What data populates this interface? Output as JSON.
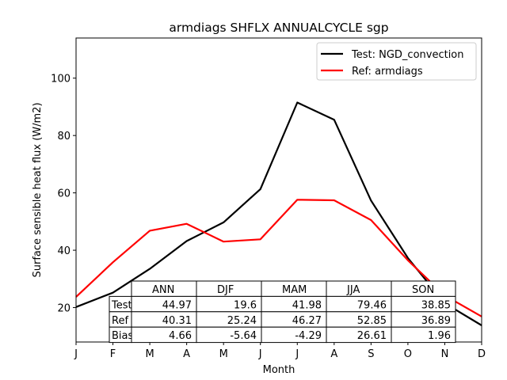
{
  "chart_data": {
    "type": "line",
    "title": "armdiags SHFLX ANNUALCYCLE sgp",
    "xlabel": "Month",
    "ylabel": "Surface sensible heat flux (W/m2)",
    "categories": [
      "J",
      "F",
      "M",
      "A",
      "M",
      "J",
      "J",
      "A",
      "S",
      "O",
      "N",
      "D"
    ],
    "ylim": [
      8,
      114
    ],
    "yticks": [
      20,
      40,
      60,
      80,
      100
    ],
    "grid": false,
    "legend_position": "top-right",
    "series": [
      {
        "name": "Test: NGD_convection",
        "color": "#000000",
        "values": [
          20.2,
          25.2,
          33.5,
          43.2,
          49.7,
          61.3,
          91.5,
          85.5,
          57.3,
          37.3,
          21.5,
          13.8
        ]
      },
      {
        "name": "Ref: armdiags",
        "color": "#ff0000",
        "values": [
          23.7,
          35.8,
          46.8,
          49.2,
          43.0,
          43.8,
          57.6,
          57.4,
          50.5,
          36.5,
          24.2,
          16.9
        ]
      }
    ],
    "table": {
      "columns": [
        "ANN",
        "DJF",
        "MAM",
        "JJA",
        "SON"
      ],
      "rows": [
        {
          "label": "Test",
          "values": [
            "44.97",
            "19.6",
            "41.98",
            "79.46",
            "38.85"
          ]
        },
        {
          "label": "Ref",
          "values": [
            "40.31",
            "25.24",
            "46.27",
            "52.85",
            "36.89"
          ]
        },
        {
          "label": "Bias",
          "values": [
            "4.66",
            "-5.64",
            "-4.29",
            "26.61",
            "1.96"
          ]
        }
      ]
    }
  }
}
